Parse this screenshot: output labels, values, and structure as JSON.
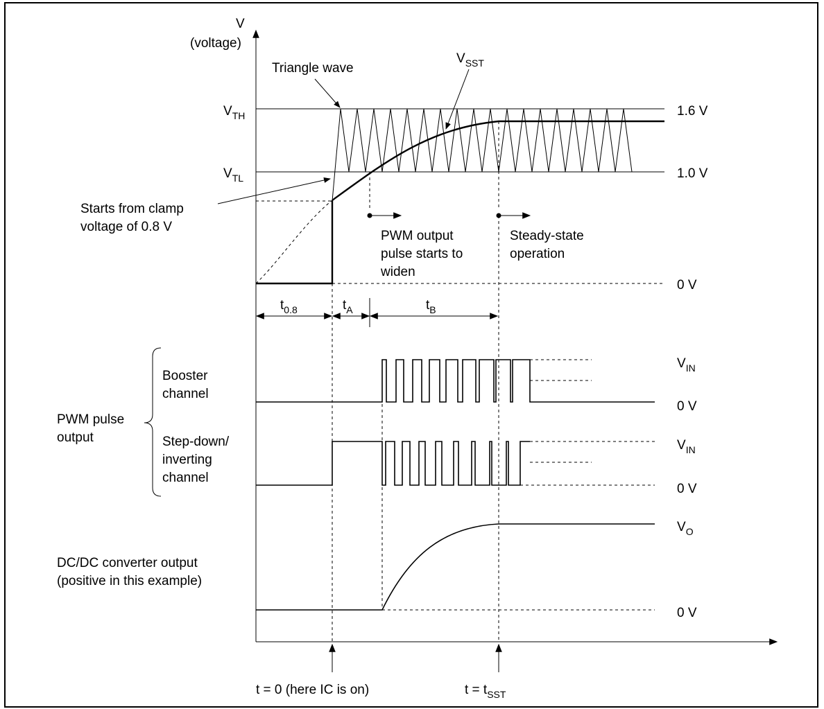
{
  "axis": {
    "v_label": "V",
    "v_sub_label": "(voltage)"
  },
  "levels": {
    "vth_main": "V",
    "vth_sub": "TH",
    "vtl_main": "V",
    "vtl_sub": "TL",
    "high_value": "1.6 V",
    "low_value": "1.0 V",
    "zero_top": "0 V",
    "vin_booster_main": "V",
    "vin_booster_sub": "IN",
    "zero_booster": "0 V",
    "vin_stepdown_main": "V",
    "vin_stepdown_sub": "IN",
    "zero_stepdown": "0 V",
    "vo_main": "V",
    "vo_sub": "O",
    "zero_dcdc": "0 V"
  },
  "annotations": {
    "triangle_wave": "Triangle wave",
    "vsst_main": "V",
    "vsst_sub": "SST",
    "clamp_line1": "Starts from clamp",
    "clamp_line2": "voltage of 0.8 V",
    "pwm_line1": "PWM output",
    "pwm_line2": "pulse starts to",
    "pwm_line3": "widen",
    "steady_line1": "Steady-state",
    "steady_line2": "operation"
  },
  "intervals": {
    "t08_main": "t",
    "t08_sub": "0.8",
    "ta_main": "t",
    "ta_sub": "A",
    "tb_main": "t",
    "tb_sub": "B"
  },
  "channels": {
    "pwm_group_line1": "PWM pulse",
    "pwm_group_line2": "output",
    "booster_line1": "Booster",
    "booster_line2": "channel",
    "stepdown_line1": "Step-down/",
    "stepdown_line2": "inverting",
    "stepdown_line3": "channel",
    "dcdc_line1": "DC/DC converter output",
    "dcdc_line2": "(positive in this example)"
  },
  "time_markers": {
    "t0": "t = 0 (here IC is on)",
    "tsst_main": "t = t",
    "tsst_sub": "SST"
  }
}
